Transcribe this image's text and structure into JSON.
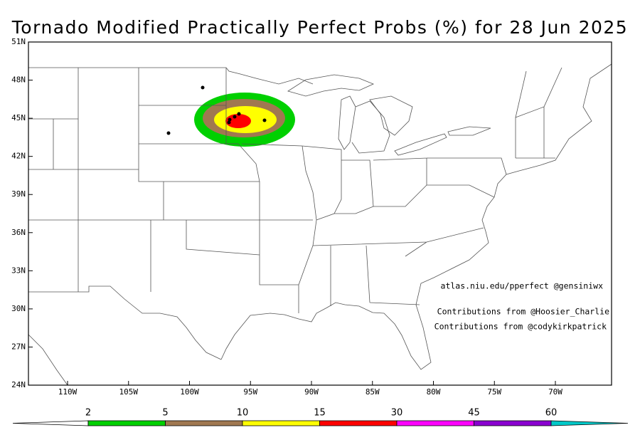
{
  "header": {
    "title": "Tornado Modified Practically Perfect Probs (%) for 28 Jun 2025"
  },
  "map": {
    "lat_labels": [
      "51N",
      "48N",
      "45N",
      "42N",
      "39N",
      "36N",
      "33N",
      "30N",
      "27N",
      "24N"
    ],
    "lon_labels": [
      "110W",
      "105W",
      "100W",
      "95W",
      "90W",
      "85W",
      "80W",
      "75W",
      "70W"
    ],
    "credits": [
      "atlas.niu.edu/pperfect @gensiniwx",
      "Contributions from @Hoosier_Charlie",
      "Contributions from @codykirkpatrick"
    ]
  },
  "colorbar": {
    "levels": [
      2,
      5,
      10,
      15,
      30,
      45,
      60
    ],
    "colors": [
      "#ffffff",
      "#00d000",
      "#a07850",
      "#ffff00",
      "#ff0000",
      "#ff00ff",
      "#8a00d0",
      "#00c8c8"
    ]
  }
}
